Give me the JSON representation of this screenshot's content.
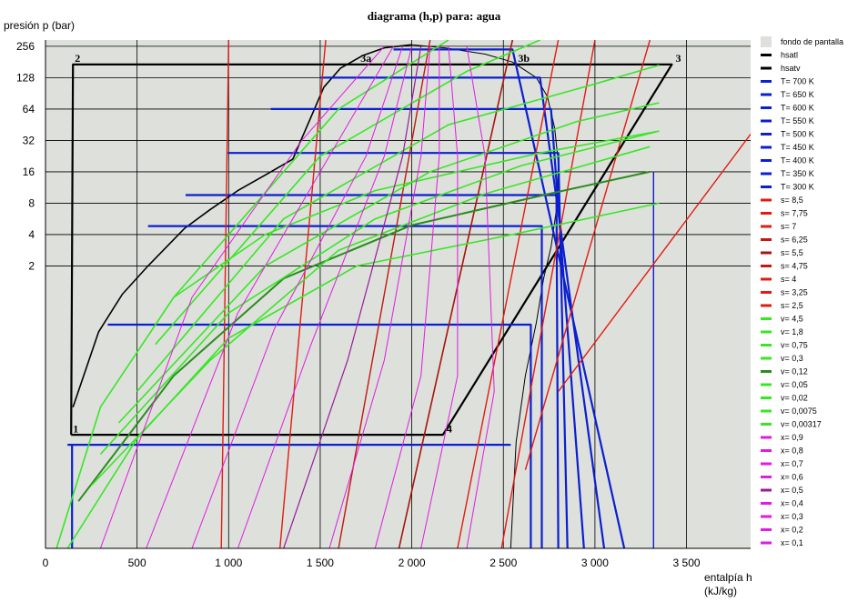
{
  "chart_data": {
    "type": "line",
    "title": "diagrama (h,p) para: agua",
    "ylabel": "presión  p (bar)",
    "xlabel_line1": "entalpía  h",
    "xlabel_line2": "(kJ/kg)",
    "xlim": [
      0,
      3850
    ],
    "ylog2_range": [
      -8,
      8.2
    ],
    "x_ticks": [
      {
        "value": 0,
        "label": "0"
      },
      {
        "value": 500,
        "label": "500"
      },
      {
        "value": 1000,
        "label": "1 000"
      },
      {
        "value": 1500,
        "label": "1 500"
      },
      {
        "value": 2000,
        "label": "2 000"
      },
      {
        "value": 2500,
        "label": "2 500"
      },
      {
        "value": 3000,
        "label": "3 000"
      },
      {
        "value": 3500,
        "label": "3 500"
      }
    ],
    "y_ticks": [
      {
        "value": 256,
        "label": "256"
      },
      {
        "value": 128,
        "label": "128"
      },
      {
        "value": 64,
        "label": "64"
      },
      {
        "value": 32,
        "label": "32"
      },
      {
        "value": 16,
        "label": "16"
      },
      {
        "value": 8,
        "label": "8"
      },
      {
        "value": 4,
        "label": "4"
      },
      {
        "value": 2,
        "label": "2"
      }
    ],
    "grid": true,
    "legend_position": "right",
    "background_color": "#dde0db",
    "legend": [
      {
        "label": "fondo de pantalla",
        "color": "#dde0db",
        "kind": "box"
      },
      {
        "label": "hsatl",
        "color": "#000000"
      },
      {
        "label": "hsatv",
        "color": "#000000"
      },
      {
        "label": "T= 700 K",
        "color": "#0b1fd0"
      },
      {
        "label": "T= 650 K",
        "color": "#0b1fd0"
      },
      {
        "label": "T= 600 K",
        "color": "#0b1fd0"
      },
      {
        "label": "T= 550 K",
        "color": "#0b1fd0"
      },
      {
        "label": "T= 500 K",
        "color": "#0b1fd0"
      },
      {
        "label": "T= 450 K",
        "color": "#0b1fd0"
      },
      {
        "label": "T= 400 K",
        "color": "#0b1fd0"
      },
      {
        "label": "T= 350 K",
        "color": "#0b1fd0"
      },
      {
        "label": "T= 300 K",
        "color": "#0b1fd0"
      },
      {
        "label": "s= 8,5",
        "color": "#e21b12"
      },
      {
        "label": "s= 7,75",
        "color": "#e21b12"
      },
      {
        "label": "s= 7",
        "color": "#e21b12"
      },
      {
        "label": "s= 6,25",
        "color": "#c21810"
      },
      {
        "label": "s= 5,5",
        "color": "#a8140d"
      },
      {
        "label": "s= 4,75",
        "color": "#c21810"
      },
      {
        "label": "s= 4",
        "color": "#e21b12"
      },
      {
        "label": "s= 3,25",
        "color": "#e21b12"
      },
      {
        "label": "s= 2,5",
        "color": "#e21b12"
      },
      {
        "label": "v= 4,5",
        "color": "#39e626"
      },
      {
        "label": "v= 1,8",
        "color": "#39e626"
      },
      {
        "label": "v= 0,75",
        "color": "#39e626"
      },
      {
        "label": "v= 0,3",
        "color": "#39e626"
      },
      {
        "label": "v= 0,12",
        "color": "#2a8c1d"
      },
      {
        "label": "v= 0,05",
        "color": "#39e626"
      },
      {
        "label": "v= 0,02",
        "color": "#39e626"
      },
      {
        "label": "v= 0,0075",
        "color": "#39e626"
      },
      {
        "label": "v= 0,00317",
        "color": "#39e626"
      },
      {
        "label": "x= 0,9",
        "color": "#e21be0"
      },
      {
        "label": "x= 0,8",
        "color": "#e21be0"
      },
      {
        "label": "x= 0,7",
        "color": "#e21be0"
      },
      {
        "label": "x= 0,6",
        "color": "#e21be0"
      },
      {
        "label": "x= 0,5",
        "color": "#9b1a9a"
      },
      {
        "label": "x= 0,4",
        "color": "#e21be0"
      },
      {
        "label": "x= 0,3",
        "color": "#e21be0"
      },
      {
        "label": "x= 0,2",
        "color": "#e21be0"
      },
      {
        "label": "x= 0,1",
        "color": "#e21be0"
      }
    ],
    "series": [
      {
        "name": "hsatl",
        "color": "#000000",
        "width": 1.6,
        "points": [
          [
            150,
            -3.5
          ],
          [
            290,
            -1.1
          ],
          [
            420,
            0.1
          ],
          [
            560,
            1.0
          ],
          [
            760,
            2.2
          ],
          [
            900,
            2.8
          ],
          [
            1050,
            3.4
          ],
          [
            1200,
            3.9
          ],
          [
            1350,
            4.4
          ],
          [
            1520,
            6.7
          ],
          [
            1610,
            7.3
          ],
          [
            1730,
            7.7
          ],
          [
            1850,
            7.95
          ],
          [
            2000,
            8.05
          ]
        ]
      },
      {
        "name": "hsatv",
        "color": "#000000",
        "width": 1.0,
        "points": [
          [
            2000,
            8.05
          ],
          [
            2180,
            7.95
          ],
          [
            2400,
            7.75
          ],
          [
            2550,
            7.5
          ],
          [
            2680,
            7.0
          ],
          [
            2740,
            6.4
          ],
          [
            2780,
            5.4
          ],
          [
            2800,
            4.3
          ],
          [
            2795,
            3.0
          ],
          [
            2760,
            1.6
          ],
          [
            2720,
            0.6
          ],
          [
            2680,
            -0.8
          ],
          [
            2620,
            -2.5
          ],
          [
            2570,
            -4.6
          ],
          [
            2540,
            -8
          ]
        ]
      },
      {
        "name": "cycle",
        "color": "#000000",
        "width": 2.2,
        "points": [
          [
            140,
            -4.38
          ],
          [
            150,
            7.42
          ],
          [
            3420,
            7.42
          ],
          [
            2170,
            -4.38
          ],
          [
            140,
            -4.38
          ]
        ]
      },
      {
        "name": "T-iso",
        "color": "#0b1fd0",
        "width": 2.2,
        "points": [
          [
            145,
            -4.7
          ],
          [
            145,
            -8
          ]
        ]
      },
      {
        "name": "T-iso",
        "color": "#0b1fd0",
        "width": 2.2,
        "points": [
          [
            120,
            -4.7
          ],
          [
            2540,
            -4.7
          ]
        ]
      },
      {
        "name": "T-iso",
        "color": "#0b1fd0",
        "width": 2.2,
        "points": [
          [
            340,
            -0.87
          ],
          [
            2650,
            -0.87
          ],
          [
            2650,
            -8
          ]
        ]
      },
      {
        "name": "T-iso",
        "color": "#0b1fd0",
        "width": 2.2,
        "points": [
          [
            560,
            2.27
          ],
          [
            2710,
            2.27
          ],
          [
            2710,
            -8
          ]
        ]
      },
      {
        "name": "T-iso",
        "color": "#0b1fd0",
        "width": 2.2,
        "points": [
          [
            765,
            3.26
          ],
          [
            2790,
            3.26
          ],
          [
            2800,
            -8
          ]
        ]
      },
      {
        "name": "T-iso",
        "color": "#0b1fd0",
        "width": 2.2,
        "points": [
          [
            995,
            4.6
          ],
          [
            2800,
            4.6
          ],
          [
            2850,
            -8
          ]
        ]
      },
      {
        "name": "T-iso",
        "color": "#0b1fd0",
        "width": 2.2,
        "points": [
          [
            1230,
            6.0
          ],
          [
            2760,
            6.0
          ],
          [
            2940,
            -8
          ]
        ]
      },
      {
        "name": "T-iso",
        "color": "#0b1fd0",
        "width": 2.2,
        "points": [
          [
            1500,
            7.0
          ],
          [
            2700,
            7.0
          ],
          [
            3050,
            -8
          ]
        ]
      },
      {
        "name": "T-iso",
        "color": "#0b1fd0",
        "width": 2.2,
        "points": [
          [
            1900,
            7.9
          ],
          [
            2550,
            7.9
          ],
          [
            3160,
            -8
          ]
        ]
      },
      {
        "name": "T-iso",
        "color": "#0b1fd0",
        "width": 1.4,
        "points": [
          [
            3320,
            -8
          ],
          [
            3320,
            4.0
          ]
        ]
      },
      {
        "name": "s-iso",
        "color": "#e21b12",
        "width": 1.4,
        "points": [
          [
            960,
            -8
          ],
          [
            1000,
            8.2
          ]
        ]
      },
      {
        "name": "s-iso",
        "color": "#e21b12",
        "width": 1.4,
        "points": [
          [
            1280,
            -8
          ],
          [
            1530,
            8.2
          ]
        ]
      },
      {
        "name": "s-iso",
        "color": "#c21810",
        "width": 1.4,
        "points": [
          [
            1600,
            -8
          ],
          [
            2100,
            8.2
          ]
        ]
      },
      {
        "name": "s-iso",
        "color": "#a8140d",
        "width": 1.6,
        "points": [
          [
            1930,
            -8
          ],
          [
            2550,
            8.2
          ]
        ]
      },
      {
        "name": "s-iso",
        "color": "#e21b12",
        "width": 1.4,
        "points": [
          [
            2250,
            -8
          ],
          [
            2800,
            8.2
          ]
        ]
      },
      {
        "name": "s-iso",
        "color": "#e21b12",
        "width": 1.4,
        "points": [
          [
            2490,
            -8
          ],
          [
            3000,
            8.2
          ]
        ]
      },
      {
        "name": "s-iso",
        "color": "#e21b12",
        "width": 1.4,
        "points": [
          [
            2620,
            -5.5
          ],
          [
            3300,
            8.2
          ]
        ]
      },
      {
        "name": "s-iso",
        "color": "#e21b12",
        "width": 1.4,
        "points": [
          [
            2800,
            -3.0
          ],
          [
            3850,
            5.2
          ]
        ]
      },
      {
        "name": "v-iso",
        "color": "#39e626",
        "width": 1.6,
        "points": [
          [
            60,
            -8
          ],
          [
            300,
            -3.5
          ],
          [
            700,
            0.0
          ],
          [
            1200,
            2.0
          ],
          [
            1800,
            3.4
          ],
          [
            2700,
            4.6
          ],
          [
            3350,
            5.3
          ]
        ]
      },
      {
        "name": "v-iso",
        "color": "#39e626",
        "width": 1.6,
        "points": [
          [
            120,
            -8
          ],
          [
            500,
            -4.5
          ],
          [
            1000,
            -1.3
          ],
          [
            1700,
            1.0
          ],
          [
            2550,
            2.0
          ],
          [
            3350,
            3.0
          ]
        ]
      },
      {
        "name": "v-iso",
        "color": "#2a8c1d",
        "width": 2.0,
        "points": [
          [
            180,
            -6.5
          ],
          [
            700,
            -2.5
          ],
          [
            1300,
            0.6
          ],
          [
            2000,
            2.3
          ],
          [
            2750,
            3.3
          ],
          [
            3300,
            4.0
          ]
        ]
      },
      {
        "name": "v-iso",
        "color": "#39e626",
        "width": 1.6,
        "points": [
          [
            250,
            -6
          ],
          [
            900,
            -2.0
          ],
          [
            1600,
            1.5
          ],
          [
            2400,
            3.3
          ],
          [
            3300,
            4.8
          ]
        ]
      },
      {
        "name": "v-iso",
        "color": "#39e626",
        "width": 1.6,
        "points": [
          [
            300,
            -5
          ],
          [
            1000,
            -0.5
          ],
          [
            1800,
            2.5
          ],
          [
            2600,
            4.2
          ],
          [
            3350,
            5.3
          ]
        ]
      },
      {
        "name": "v-iso",
        "color": "#39e626",
        "width": 1.6,
        "points": [
          [
            400,
            -4
          ],
          [
            1200,
            1.0
          ],
          [
            2100,
            4.0
          ],
          [
            2900,
            5.6
          ],
          [
            3350,
            6.2
          ]
        ]
      },
      {
        "name": "v-iso",
        "color": "#39e626",
        "width": 1.6,
        "points": [
          [
            500,
            -3
          ],
          [
            1300,
            2.5
          ],
          [
            2200,
            5.5
          ],
          [
            3000,
            6.8
          ],
          [
            3350,
            7.4
          ]
        ]
      },
      {
        "name": "v-iso",
        "color": "#39e626",
        "width": 1.6,
        "points": [
          [
            600,
            -1.5
          ],
          [
            1500,
            4.5
          ],
          [
            2300,
            7.2
          ],
          [
            2700,
            8.2
          ]
        ]
      },
      {
        "name": "v-iso",
        "color": "#39e626",
        "width": 1.6,
        "points": [
          [
            700,
            0
          ],
          [
            1600,
            6.0
          ],
          [
            2200,
            8.2
          ]
        ]
      },
      {
        "name": "x-iso",
        "color": "#e21be0",
        "width": 1.0,
        "points": [
          [
            300,
            -8
          ],
          [
            800,
            0
          ],
          [
            1400,
            5
          ],
          [
            1850,
            8.0
          ]
        ]
      },
      {
        "name": "x-iso",
        "color": "#e21be0",
        "width": 1.0,
        "points": [
          [
            550,
            -8
          ],
          [
            1050,
            -0.5
          ],
          [
            1600,
            5
          ],
          [
            1900,
            8.0
          ]
        ]
      },
      {
        "name": "x-iso",
        "color": "#e21be0",
        "width": 1.0,
        "points": [
          [
            800,
            -8
          ],
          [
            1250,
            -1
          ],
          [
            1750,
            4.5
          ],
          [
            1950,
            8.0
          ]
        ]
      },
      {
        "name": "x-iso",
        "color": "#e21be0",
        "width": 1.0,
        "points": [
          [
            1050,
            -8
          ],
          [
            1450,
            -1.5
          ],
          [
            1850,
            4.5
          ],
          [
            2000,
            8.0
          ]
        ]
      },
      {
        "name": "x-iso",
        "color": "#9b1a9a",
        "width": 1.2,
        "points": [
          [
            1300,
            -8
          ],
          [
            1650,
            -2
          ],
          [
            1950,
            4.5
          ],
          [
            2050,
            8.0
          ]
        ]
      },
      {
        "name": "x-iso",
        "color": "#e21be0",
        "width": 1.0,
        "points": [
          [
            1550,
            -8
          ],
          [
            1850,
            -2
          ],
          [
            2050,
            4.5
          ],
          [
            2100,
            8.0
          ]
        ]
      },
      {
        "name": "x-iso",
        "color": "#e21be0",
        "width": 1.0,
        "points": [
          [
            1800,
            -8
          ],
          [
            2050,
            -2.5
          ],
          [
            2150,
            4.5
          ],
          [
            2150,
            8.0
          ]
        ]
      },
      {
        "name": "x-iso",
        "color": "#e21be0",
        "width": 1.0,
        "points": [
          [
            2050,
            -8
          ],
          [
            2250,
            -2.5
          ],
          [
            2250,
            4.5
          ],
          [
            2200,
            8.0
          ]
        ]
      },
      {
        "name": "x-iso",
        "color": "#e21be0",
        "width": 1.0,
        "points": [
          [
            2300,
            -8
          ],
          [
            2450,
            -3
          ],
          [
            2400,
            4.5
          ],
          [
            2300,
            8.0
          ]
        ]
      }
    ],
    "annotations": [
      {
        "text": "1",
        "x": 150,
        "y": -4.3
      },
      {
        "text": "2",
        "x": 160,
        "y": 7.5
      },
      {
        "text": "3a",
        "x": 1720,
        "y": 7.5
      },
      {
        "text": "3b",
        "x": 2580,
        "y": 7.5
      },
      {
        "text": "3",
        "x": 3440,
        "y": 7.5
      },
      {
        "text": "4",
        "x": 2190,
        "y": -4.3
      }
    ]
  }
}
